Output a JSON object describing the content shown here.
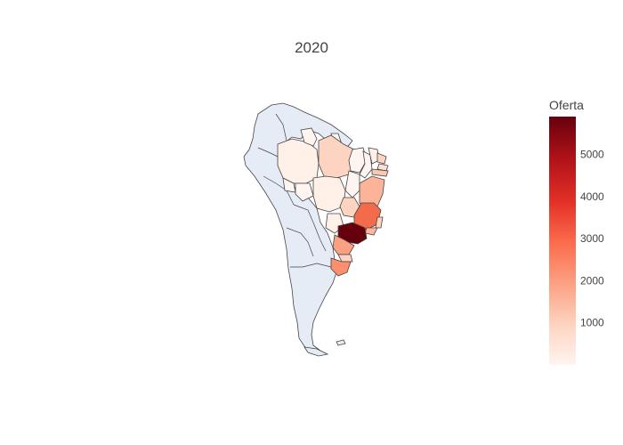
{
  "title": "2020",
  "colorbar": {
    "title": "Oferta",
    "ticks": [
      "1000",
      "2000",
      "3000",
      "4000",
      "5000"
    ],
    "tick_values": [
      1000,
      2000,
      3000,
      4000,
      5000
    ],
    "min": 0,
    "max": 5900,
    "colors": [
      "#fff5f0",
      "#fdd4c2",
      "#fca082",
      "#fb694a",
      "#e32f27",
      "#b11218",
      "#67000d"
    ]
  },
  "map": {
    "land_color": "#e5ecf6",
    "border_color": "#444444"
  }
}
